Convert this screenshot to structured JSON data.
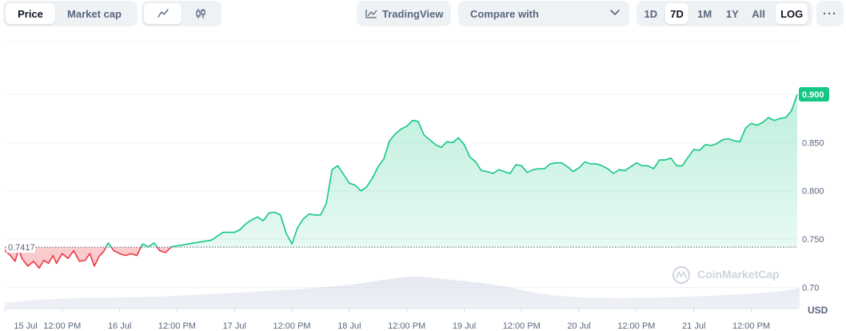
{
  "toolbar": {
    "tabs": [
      {
        "label": "Price",
        "active": true
      },
      {
        "label": "Market cap",
        "active": false
      }
    ],
    "chart_views": [
      {
        "icon": "line-chart-icon",
        "active": true
      },
      {
        "icon": "candlestick-icon",
        "active": false
      }
    ],
    "tradingview_label": "TradingView",
    "compare_label": "Compare with",
    "ranges": [
      {
        "label": "1D",
        "active": false
      },
      {
        "label": "7D",
        "active": true
      },
      {
        "label": "1M",
        "active": false
      },
      {
        "label": "1Y",
        "active": false
      },
      {
        "label": "All",
        "active": false
      }
    ],
    "log_label": "LOG",
    "more_label": "···"
  },
  "watermark": "CoinMarketCap",
  "currency_label": "USD",
  "colors": {
    "up": "#16c784",
    "down": "#ea3943",
    "up_fill": "#16c784",
    "down_fill": "#ea3943",
    "grid": "#eff2f5",
    "axis_text": "#58667e",
    "badge": "#16c784",
    "baseline": "#58667e"
  },
  "chart_data": {
    "type": "line",
    "title": "",
    "xlabel": "",
    "ylabel": "",
    "ylim": [
      0.678,
      0.958
    ],
    "xlim": [
      0,
      6.9
    ],
    "yticks": [
      0.7,
      0.75,
      0.8,
      0.85,
      0.9
    ],
    "ytick_labels": [
      "0.70",
      "0.750",
      "0.800",
      "0.850",
      "0.900"
    ],
    "xticks": [
      {
        "x": 0.0,
        "label": "15 Jul"
      },
      {
        "x": 0.5,
        "label": "12:00 PM"
      },
      {
        "x": 1.0,
        "label": "16 Jul"
      },
      {
        "x": 1.5,
        "label": "12:00 PM"
      },
      {
        "x": 2.0,
        "label": "17 Jul"
      },
      {
        "x": 2.5,
        "label": "12:00 PM"
      },
      {
        "x": 3.0,
        "label": "18 Jul"
      },
      {
        "x": 3.5,
        "label": "12:00 PM"
      },
      {
        "x": 4.0,
        "label": "19 Jul"
      },
      {
        "x": 4.5,
        "label": "12:00 PM"
      },
      {
        "x": 5.0,
        "label": "20 Jul"
      },
      {
        "x": 5.5,
        "label": "12:00 PM"
      },
      {
        "x": 6.0,
        "label": "21 Jul"
      },
      {
        "x": 6.5,
        "label": "12:00 PM"
      }
    ],
    "baseline": {
      "value": 0.7417,
      "label": "0.7417"
    },
    "current": {
      "value": 0.9,
      "label": "0.900"
    },
    "grid": true,
    "series": [
      {
        "x": [
          0.0,
          0.05,
          0.09,
          0.12,
          0.15,
          0.2,
          0.25,
          0.3,
          0.34,
          0.38,
          0.42,
          0.45,
          0.5,
          0.55,
          0.6,
          0.65,
          0.7,
          0.74,
          0.78,
          0.82,
          0.86,
          0.9,
          0.95,
          1.0,
          1.05,
          1.1,
          1.15,
          1.2,
          1.25,
          1.3,
          1.35,
          1.4,
          1.45,
          1.5,
          1.6,
          1.7,
          1.8,
          1.9,
          2.0,
          2.05,
          2.1,
          2.15,
          2.2,
          2.25,
          2.3,
          2.35,
          2.4,
          2.45,
          2.5,
          2.55,
          2.6,
          2.65,
          2.7,
          2.75,
          2.8,
          2.85,
          2.9,
          2.95,
          3.0,
          3.05,
          3.1,
          3.15,
          3.2,
          3.25,
          3.3,
          3.35,
          3.4,
          3.45,
          3.5,
          3.55,
          3.6,
          3.65,
          3.7,
          3.75,
          3.8,
          3.85,
          3.9,
          3.95,
          4.0,
          4.05,
          4.1,
          4.15,
          4.2,
          4.25,
          4.3,
          4.35,
          4.4,
          4.45,
          4.5,
          4.55,
          4.6,
          4.65,
          4.7,
          4.75,
          4.8,
          4.85,
          4.9,
          4.95,
          5.0,
          5.05,
          5.1,
          5.15,
          5.2,
          5.25,
          5.3,
          5.35,
          5.4,
          5.45,
          5.5,
          5.55,
          5.6,
          5.65,
          5.7,
          5.75,
          5.8,
          5.85,
          5.9,
          5.95,
          6.0,
          6.05,
          6.1,
          6.15,
          6.2,
          6.25,
          6.3,
          6.35,
          6.4,
          6.45,
          6.5,
          6.55,
          6.6,
          6.65,
          6.7,
          6.75,
          6.8,
          6.85,
          6.9
        ],
        "y": [
          0.738,
          0.733,
          0.727,
          0.74,
          0.73,
          0.722,
          0.727,
          0.72,
          0.728,
          0.725,
          0.733,
          0.725,
          0.735,
          0.73,
          0.738,
          0.727,
          0.728,
          0.735,
          0.722,
          0.732,
          0.737,
          0.746,
          0.738,
          0.735,
          0.733,
          0.735,
          0.733,
          0.745,
          0.742,
          0.746,
          0.738,
          0.736,
          0.742,
          0.743,
          0.745,
          0.747,
          0.749,
          0.757,
          0.757,
          0.76,
          0.766,
          0.77,
          0.773,
          0.769,
          0.777,
          0.778,
          0.775,
          0.756,
          0.745,
          0.762,
          0.771,
          0.776,
          0.775,
          0.775,
          0.787,
          0.822,
          0.826,
          0.817,
          0.808,
          0.806,
          0.8,
          0.804,
          0.813,
          0.825,
          0.833,
          0.852,
          0.859,
          0.864,
          0.867,
          0.873,
          0.872,
          0.858,
          0.853,
          0.848,
          0.845,
          0.851,
          0.85,
          0.855,
          0.848,
          0.835,
          0.83,
          0.821,
          0.82,
          0.818,
          0.822,
          0.82,
          0.818,
          0.827,
          0.826,
          0.819,
          0.822,
          0.823,
          0.823,
          0.828,
          0.829,
          0.829,
          0.825,
          0.82,
          0.824,
          0.83,
          0.828,
          0.828,
          0.826,
          0.823,
          0.818,
          0.822,
          0.821,
          0.825,
          0.829,
          0.826,
          0.826,
          0.823,
          0.832,
          0.832,
          0.834,
          0.826,
          0.826,
          0.835,
          0.843,
          0.842,
          0.848,
          0.847,
          0.849,
          0.853,
          0.854,
          0.852,
          0.851,
          0.865,
          0.87,
          0.868,
          0.871,
          0.876,
          0.873,
          0.875,
          0.876,
          0.883,
          0.9
        ]
      }
    ]
  }
}
